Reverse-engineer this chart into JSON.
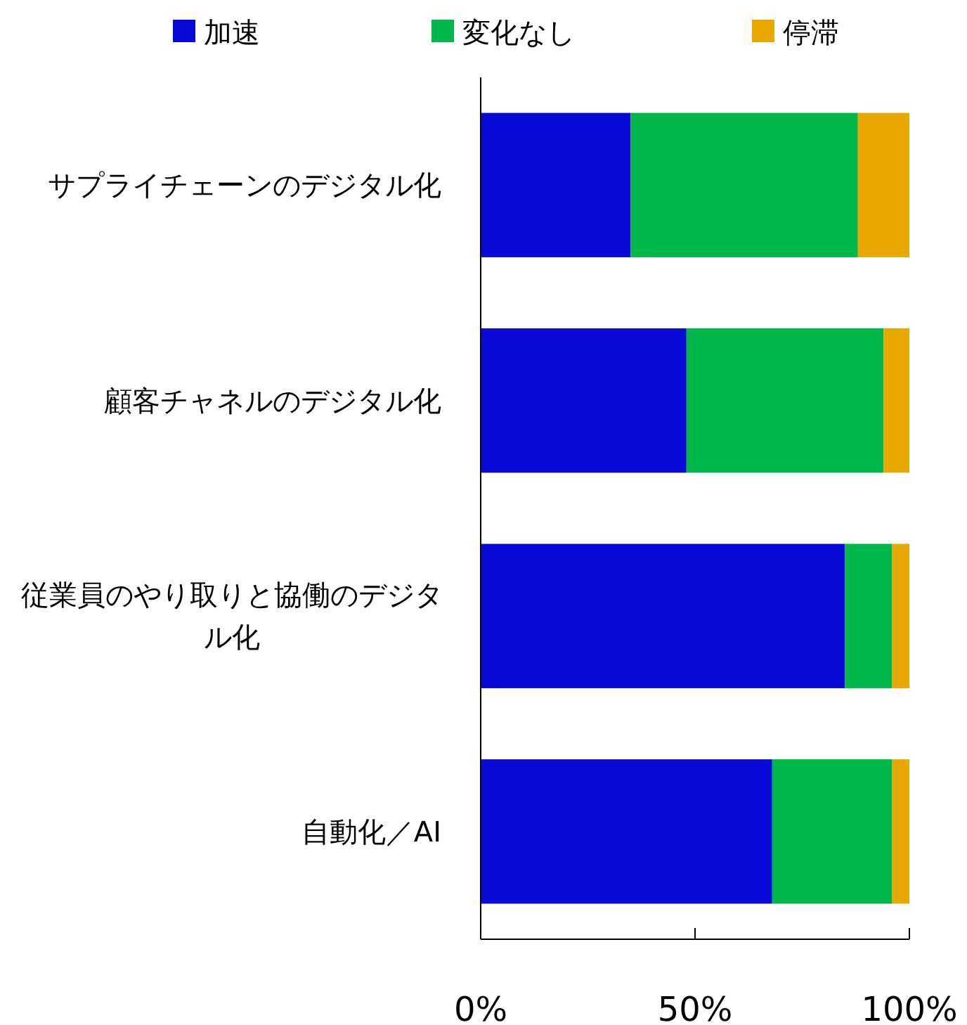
{
  "chart_data": {
    "type": "bar",
    "orientation": "horizontal",
    "stacked": true,
    "legend": "top",
    "categories": [
      "サプライチェーンのデジタル化",
      "顧客チャネルのデジタル化",
      "従業員のやり取りと協働のデジタル化",
      "自動化／AI"
    ],
    "series": [
      {
        "name": "加速",
        "color": "#0a0ad8",
        "values": [
          35,
          48,
          85,
          68
        ]
      },
      {
        "name": "変化なし",
        "color": "#00b84a",
        "values": [
          53,
          46,
          11,
          28
        ]
      },
      {
        "name": "停滞",
        "color": "#e8a800",
        "values": [
          12,
          6,
          4,
          4
        ]
      }
    ],
    "xlim": [
      0,
      100
    ],
    "xticks": [
      {
        "value": 0,
        "label": "0%"
      },
      {
        "value": 50,
        "label": "50%"
      },
      {
        "value": 100,
        "label": "100%"
      }
    ]
  }
}
